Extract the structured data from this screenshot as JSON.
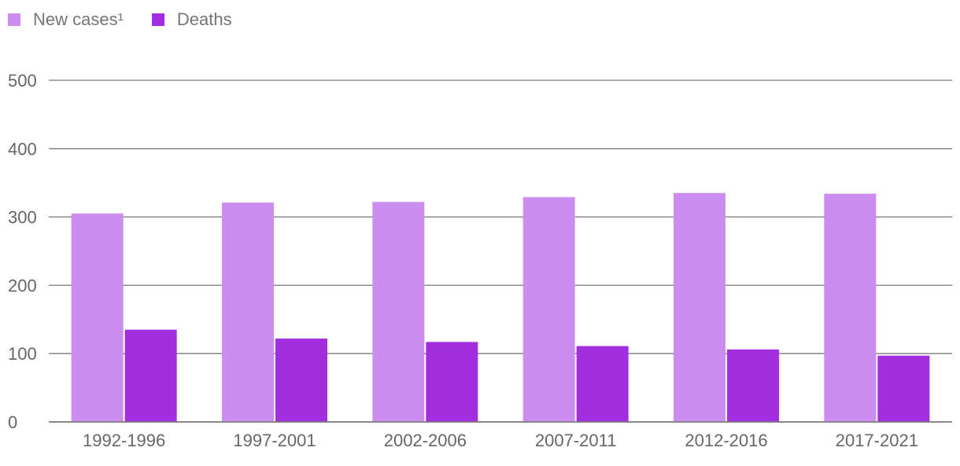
{
  "legend": {
    "new_cases_label": "New cases¹",
    "deaths_label": "Deaths"
  },
  "colors": {
    "new_cases": "#cb8eee",
    "deaths": "#a32ee0",
    "grid": "#7a7a7a",
    "text": "#666666"
  },
  "chart_data": {
    "type": "bar",
    "categories": [
      "1992-1996",
      "1997-2001",
      "2002-2006",
      "2007-2011",
      "2012-2016",
      "2017-2021"
    ],
    "series": [
      {
        "name": "New cases¹",
        "values": [
          305,
          321,
          322,
          329,
          335,
          334
        ]
      },
      {
        "name": "Deaths",
        "values": [
          135,
          122,
          117,
          111,
          106,
          97
        ]
      }
    ],
    "yticks": [
      0,
      100,
      200,
      300,
      400,
      500
    ],
    "ylim": [
      0,
      500
    ],
    "grid": true,
    "legend_position": "top-left"
  }
}
